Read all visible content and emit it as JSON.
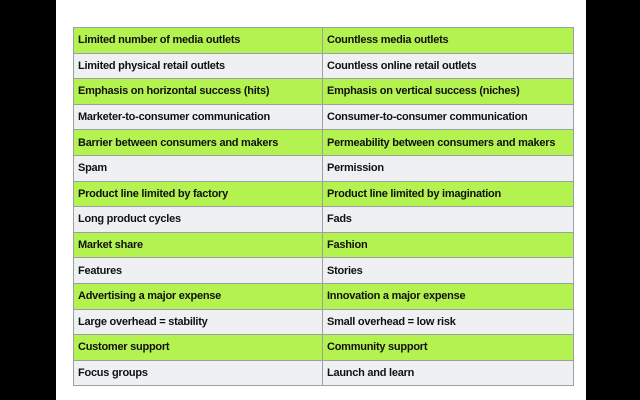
{
  "table": {
    "rows": [
      [
        "Limited number of media outlets",
        "Countless media outlets"
      ],
      [
        "Limited physical retail outlets",
        "Countless online retail outlets"
      ],
      [
        "Emphasis on horizontal success (hits)",
        "Emphasis on vertical success (niches)"
      ],
      [
        "Marketer-to-consumer communication",
        "Consumer-to-consumer communication"
      ],
      [
        "Barrier between consumers and makers",
        "Permeability between consumers and makers"
      ],
      [
        "Spam",
        "Permission"
      ],
      [
        "Product line limited by factory",
        "Product line limited by imagination"
      ],
      [
        "Long product cycles",
        "Fads"
      ],
      [
        "Market share",
        "Fashion"
      ],
      [
        "Features",
        "Stories"
      ],
      [
        "Advertising a major expense",
        "Innovation a major expense"
      ],
      [
        "Large overhead = stability",
        "Small overhead = low risk"
      ],
      [
        "Customer support",
        "Community support"
      ],
      [
        "Focus groups",
        "Launch and learn"
      ]
    ]
  }
}
